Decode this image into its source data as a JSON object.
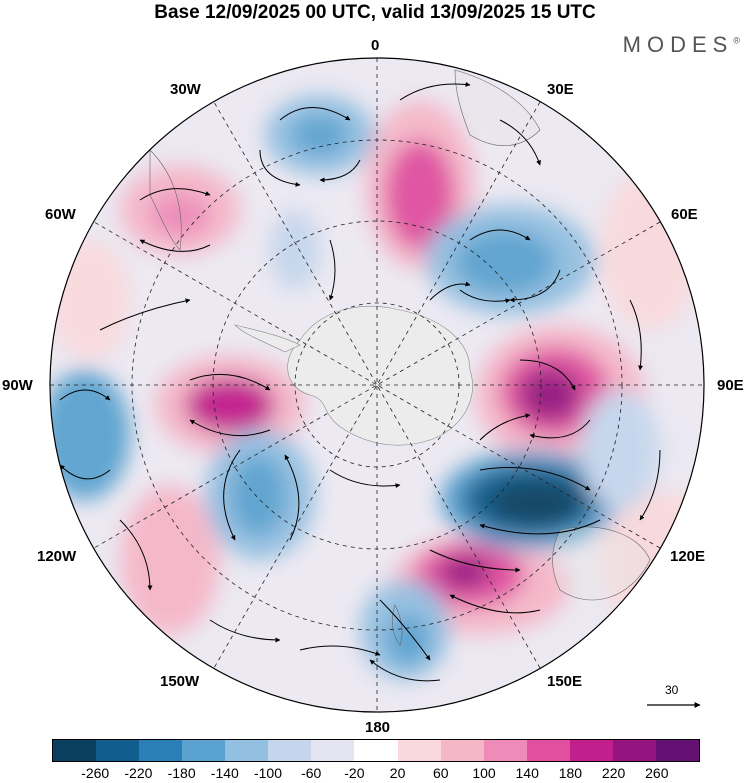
{
  "title": "Base 12/09/2025 00 UTC, valid 13/09/2025 15 UTC",
  "brand": {
    "name": "MODES",
    "mark": "®"
  },
  "longitude_labels": {
    "lon_0": "0",
    "lon_30E": "30E",
    "lon_60E": "60E",
    "lon_90E": "90E",
    "lon_120E": "120E",
    "lon_150E": "150E",
    "lon_180": "180",
    "lon_150W": "150W",
    "lon_120W": "120W",
    "lon_90W": "90W",
    "lon_60W": "60W",
    "lon_30W": "30W"
  },
  "reference_vector": {
    "label": "30"
  },
  "colorbar": {
    "colors": [
      "#0b3f5f",
      "#115d8d",
      "#2b7fb8",
      "#5aa2cf",
      "#93bfe0",
      "#c5d6ec",
      "#e5e4f1",
      "#ffffff",
      "#f9d9dc",
      "#f5b6c7",
      "#ee8bb8",
      "#e0509f",
      "#c11f8c",
      "#94157f",
      "#651174"
    ],
    "ticks": [
      "-260",
      "-220",
      "-180",
      "-140",
      "-100",
      "-60",
      "-20",
      "20",
      "60",
      "100",
      "140",
      "180",
      "220",
      "260"
    ]
  }
}
